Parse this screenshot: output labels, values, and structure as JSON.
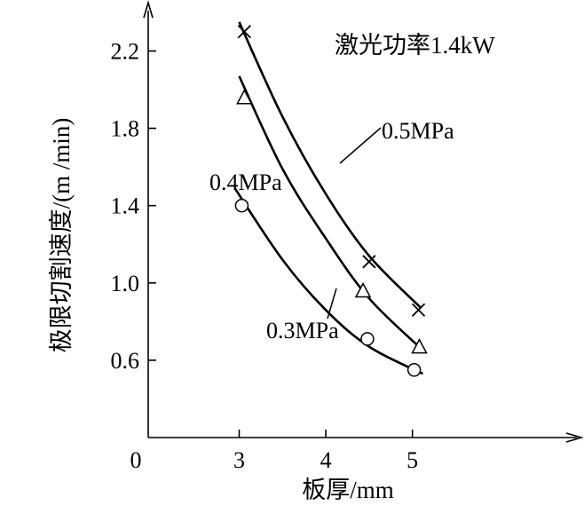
{
  "chart_data": {
    "type": "line",
    "title": "",
    "annotation": "激光功率1.4kW",
    "xlabel": "板厚/mm",
    "ylabel": "极限切割速度/(m /min)",
    "origin_label": "0",
    "xlim": [
      1.95,
      6.95
    ],
    "ylim": [
      0.2,
      2.45
    ],
    "x_ticks": [
      {
        "value": 3,
        "label": "3"
      },
      {
        "value": 4,
        "label": "4"
      },
      {
        "value": 5,
        "label": "5"
      }
    ],
    "y_ticks": [
      {
        "value": 0.6,
        "label": "0.6"
      },
      {
        "value": 1.0,
        "label": "1.0"
      },
      {
        "value": 1.4,
        "label": "1.4"
      },
      {
        "value": 1.8,
        "label": "1.8"
      },
      {
        "value": 2.2,
        "label": "2.2"
      }
    ],
    "grid": false,
    "legend": "none",
    "series": [
      {
        "name": "0.5MPa",
        "marker": "cross",
        "points": [
          {
            "x": 3.06,
            "y": 2.3
          },
          {
            "x": 4.5,
            "y": 1.11
          },
          {
            "x": 5.07,
            "y": 0.86
          }
        ],
        "curve": [
          {
            "x": 3.0,
            "y": 2.35
          },
          {
            "x": 3.5,
            "y": 1.86
          },
          {
            "x": 4.0,
            "y": 1.46
          },
          {
            "x": 4.5,
            "y": 1.14
          },
          {
            "x": 5.1,
            "y": 0.87
          }
        ]
      },
      {
        "name": "0.4MPa",
        "marker": "triangle",
        "points": [
          {
            "x": 3.06,
            "y": 1.96
          },
          {
            "x": 4.43,
            "y": 0.96
          },
          {
            "x": 5.08,
            "y": 0.67
          }
        ],
        "curve": [
          {
            "x": 3.0,
            "y": 2.07
          },
          {
            "x": 3.5,
            "y": 1.59
          },
          {
            "x": 4.0,
            "y": 1.23
          },
          {
            "x": 4.5,
            "y": 0.92
          },
          {
            "x": 5.1,
            "y": 0.66
          }
        ]
      },
      {
        "name": "0.3MPa",
        "marker": "circle",
        "points": [
          {
            "x": 3.03,
            "y": 1.4
          },
          {
            "x": 4.48,
            "y": 0.71
          },
          {
            "x": 5.02,
            "y": 0.55
          }
        ],
        "curve": [
          {
            "x": 2.95,
            "y": 1.49
          },
          {
            "x": 3.5,
            "y": 1.12
          },
          {
            "x": 4.0,
            "y": 0.86
          },
          {
            "x": 4.5,
            "y": 0.67
          },
          {
            "x": 5.12,
            "y": 0.53
          }
        ]
      }
    ]
  }
}
